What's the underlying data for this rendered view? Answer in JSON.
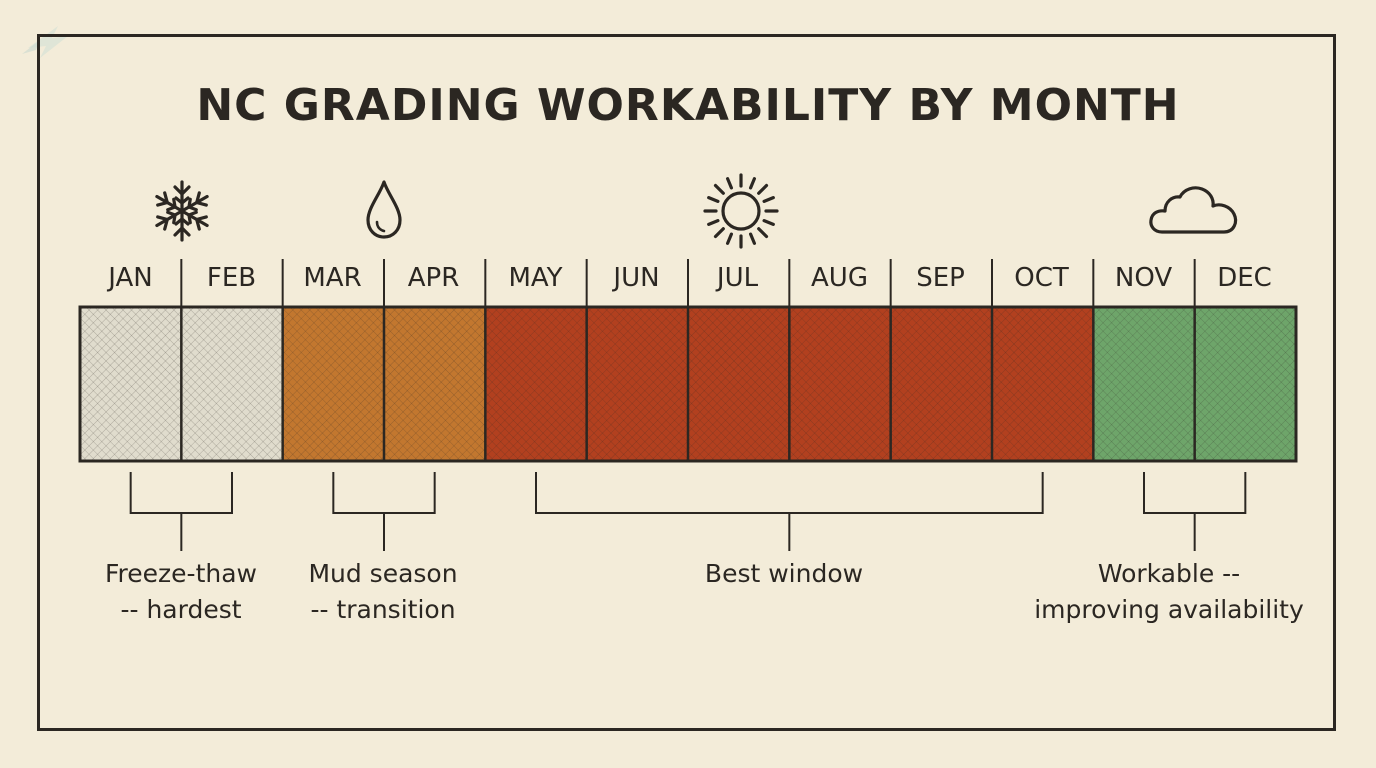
{
  "title": "NC GRADING WORKABILITY BY MONTH",
  "months": [
    "JAN",
    "FEB",
    "MAR",
    "APR",
    "MAY",
    "JUN",
    "JUL",
    "AUG",
    "SEP",
    "OCT",
    "NOV",
    "DEC"
  ],
  "season_colors": {
    "freeze": "#e0dccd",
    "mud": "#c2772f",
    "best": "#b2401f",
    "workable": "#6ea56a"
  },
  "month_season": [
    "freeze",
    "freeze",
    "mud",
    "mud",
    "best",
    "best",
    "best",
    "best",
    "best",
    "best",
    "workable",
    "workable"
  ],
  "groups": [
    {
      "line1": "Freeze-thaw",
      "line2": "-- hardest",
      "icon": "snowflake-icon"
    },
    {
      "line1": "Mud season",
      "line2": "-- transition",
      "icon": "raindrop-icon"
    },
    {
      "line1": "Best window",
      "line2": "",
      "icon": "sun-icon"
    },
    {
      "line1": "Workable --",
      "line2": "improving availability",
      "icon": "cloud-icon"
    }
  ]
}
